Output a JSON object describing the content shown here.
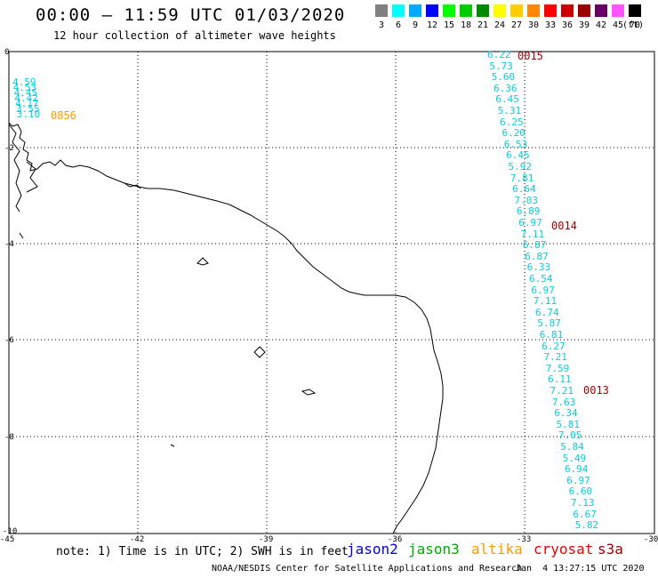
{
  "header": {
    "title": "00:00 – 11:59 UTC 01/03/2020",
    "subtitle": "12 hour collection of altimeter wave heights"
  },
  "color_scale": {
    "unit": "(ft)",
    "bins": [
      {
        "label": "3",
        "color": "#808080"
      },
      {
        "label": "6",
        "color": "#00ffff"
      },
      {
        "label": "9",
        "color": "#00aaff"
      },
      {
        "label": "12",
        "color": "#0000ff"
      },
      {
        "label": "15",
        "color": "#00ff00"
      },
      {
        "label": "18",
        "color": "#00cc00"
      },
      {
        "label": "21",
        "color": "#008800"
      },
      {
        "label": "24",
        "color": "#ffff00"
      },
      {
        "label": "27",
        "color": "#ffcc00"
      },
      {
        "label": "30",
        "color": "#ff8800"
      },
      {
        "label": "33",
        "color": "#ff0000"
      },
      {
        "label": "36",
        "color": "#cc0000"
      },
      {
        "label": "39",
        "color": "#990000"
      },
      {
        "label": "42",
        "color": "#660066"
      },
      {
        "label": "45",
        "color": "#ff55ff"
      },
      {
        "label": "70",
        "color": "#000000"
      }
    ]
  },
  "axes": {
    "lat_labels": [
      "0",
      "-2",
      "-4",
      "-6",
      "-8",
      "-10"
    ],
    "lon_labels": [
      "-45",
      "-42",
      "-39",
      "-36",
      "-33",
      "-30"
    ]
  },
  "tracks": [
    {
      "time": "0015",
      "time_color": "#990000",
      "values": [
        "6.22",
        "5.73",
        "5.60",
        "6.36",
        "6.45",
        "5.31",
        "6.25",
        "6.20",
        "6.53",
        "6.45",
        "5.92",
        "7.81",
        "6.64",
        "7.03",
        "6.89",
        "6.97",
        "7.11",
        "6.87",
        "6.87",
        "6.33",
        "6.54",
        "6.97",
        "7.11",
        "6.74",
        "5.87",
        "6.81",
        "6.27",
        "7.21",
        "7.59",
        "6.11",
        "7.21",
        "7.63",
        "6.34",
        "5.81",
        "7.05",
        "5.84",
        "5.49",
        "6.94",
        "6.97",
        "6.60",
        "7.13",
        "6.67",
        "5.82"
      ]
    },
    {
      "time": "0014",
      "time_color": "#990000",
      "values": []
    },
    {
      "time": "0013",
      "time_color": "#990000",
      "values": []
    },
    {
      "time": "0856",
      "time_color": "#ff9900",
      "values": [
        "4.59",
        "4.53",
        "4.45",
        "4.42",
        "4.17",
        "3.55",
        "3.10"
      ]
    }
  ],
  "note": "note: 1) Time is in UTC; 2) SWH is in feet",
  "legend": [
    {
      "label": "jason2",
      "color": "#0000ee"
    },
    {
      "label": "jason3",
      "color": "#00aa00"
    },
    {
      "label": "altika",
      "color": "#ff9900"
    },
    {
      "label": "cryosat",
      "color": "#ee0000"
    },
    {
      "label": "s3a",
      "color": "#990000"
    }
  ],
  "footer": {
    "credit": "NOAA/NESDIS Center for Satellite Applications and Research",
    "timestamp": "Jan  4 13:27:15 UTC 2020"
  }
}
